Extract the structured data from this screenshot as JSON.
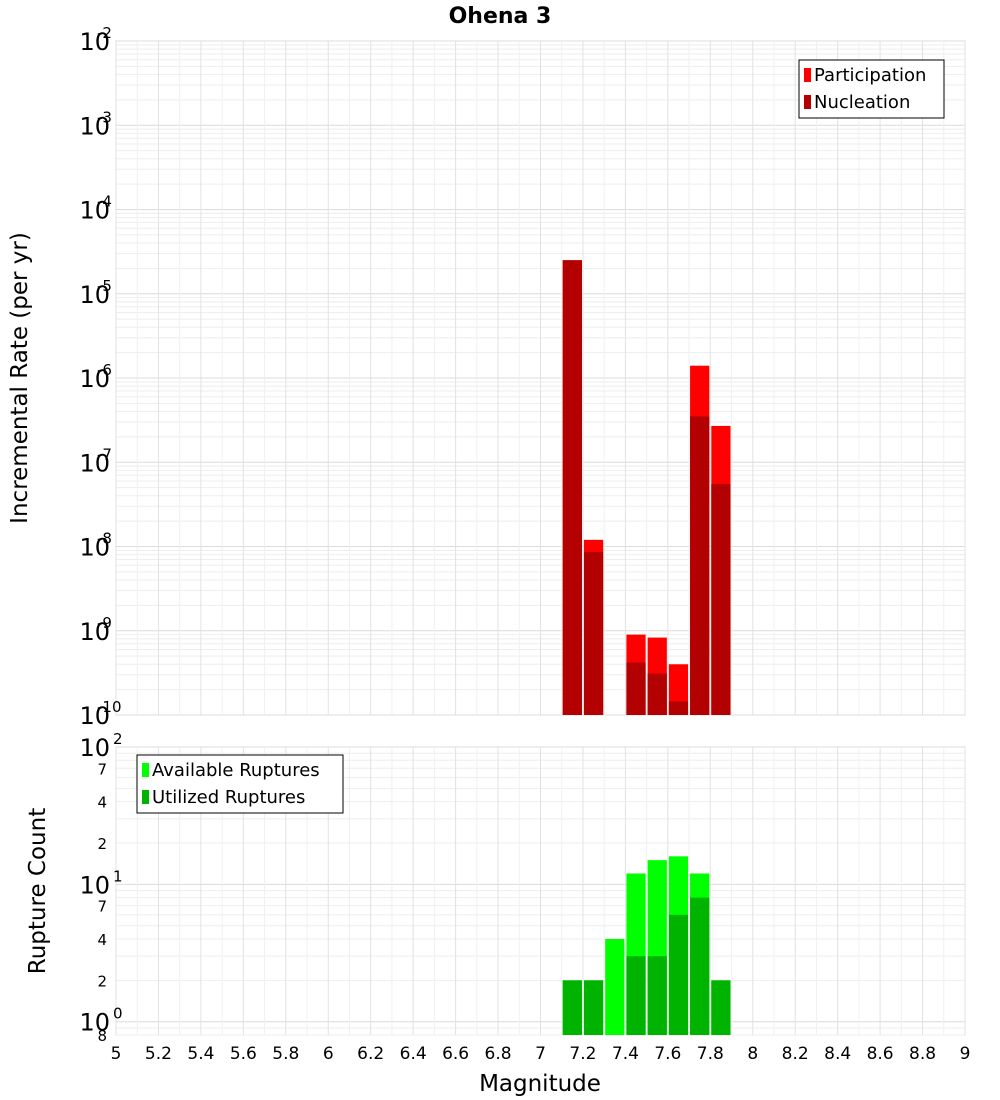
{
  "chart_data": {
    "title": "Ohena 3",
    "xlabel": "Magnitude",
    "xlim": [
      5,
      9
    ],
    "x_ticks": [
      "5",
      "5.2",
      "5.4",
      "5.6",
      "5.8",
      "6",
      "6.2",
      "6.4",
      "6.6",
      "6.8",
      "7",
      "7.2",
      "7.4",
      "7.6",
      "7.8",
      "8",
      "8.2",
      "8.4",
      "8.6",
      "8.8",
      "9"
    ],
    "bar_width": 0.1,
    "panels": [
      {
        "type": "bar",
        "ylabel": "Incremental Rate (per yr)",
        "yscale": "log",
        "ylim": [
          1e-10,
          0.01
        ],
        "major_ticks": [
          {
            "base": "10",
            "exp": "-10",
            "value": 1e-10
          },
          {
            "base": "10",
            "exp": "-9",
            "value": 1e-09
          },
          {
            "base": "10",
            "exp": "-8",
            "value": 1e-08
          },
          {
            "base": "10",
            "exp": "-7",
            "value": 1e-07
          },
          {
            "base": "10",
            "exp": "-6",
            "value": 1e-06
          },
          {
            "base": "10",
            "exp": "-5",
            "value": 1e-05
          },
          {
            "base": "10",
            "exp": "-4",
            "value": 0.0001
          },
          {
            "base": "10",
            "exp": "-3",
            "value": 0.001
          },
          {
            "base": "10",
            "exp": "-2",
            "value": 0.01
          }
        ],
        "minor_ticks": [],
        "legend_position": "top-right",
        "series": [
          {
            "name": "Participation",
            "color": "#ff0000",
            "points": [
              {
                "x": 7.15,
                "y": 2.5e-05
              },
              {
                "x": 7.25,
                "y": 1.2e-08
              },
              {
                "x": 7.45,
                "y": 9e-10
              },
              {
                "x": 7.55,
                "y": 8.3e-10
              },
              {
                "x": 7.65,
                "y": 4e-10
              },
              {
                "x": 7.75,
                "y": 1.4e-06
              },
              {
                "x": 7.85,
                "y": 2.7e-07
              }
            ]
          },
          {
            "name": "Nucleation",
            "color": "#b30000",
            "points": [
              {
                "x": 7.15,
                "y": 2.5e-05
              },
              {
                "x": 7.25,
                "y": 8.6e-09
              },
              {
                "x": 7.45,
                "y": 4.2e-10
              },
              {
                "x": 7.55,
                "y": 3.1e-10
              },
              {
                "x": 7.65,
                "y": 1.45e-10
              },
              {
                "x": 7.75,
                "y": 3.5e-07
              },
              {
                "x": 7.85,
                "y": 5.5e-08
              }
            ]
          }
        ]
      },
      {
        "type": "bar",
        "ylabel": "Rupture Count",
        "yscale": "log",
        "ylim": [
          0.8,
          100
        ],
        "major_ticks": [
          {
            "base": "10",
            "exp": "0",
            "value": 1
          },
          {
            "base": "10",
            "exp": "1",
            "value": 10
          },
          {
            "base": "10",
            "exp": "2",
            "value": 100
          }
        ],
        "minor_ticks": [
          {
            "label": "8",
            "value": 0.8
          },
          {
            "label": "2",
            "value": 2
          },
          {
            "label": "4",
            "value": 4
          },
          {
            "label": "7",
            "value": 7
          },
          {
            "label": "2",
            "value": 20
          },
          {
            "label": "4",
            "value": 40
          },
          {
            "label": "7",
            "value": 70
          }
        ],
        "legend_position": "top-left",
        "series": [
          {
            "name": "Available Ruptures",
            "color": "#00ff00",
            "points": [
              {
                "x": 7.15,
                "y": 2
              },
              {
                "x": 7.25,
                "y": 2
              },
              {
                "x": 7.35,
                "y": 4
              },
              {
                "x": 7.45,
                "y": 12
              },
              {
                "x": 7.55,
                "y": 15
              },
              {
                "x": 7.65,
                "y": 16
              },
              {
                "x": 7.75,
                "y": 12
              },
              {
                "x": 7.85,
                "y": 2
              }
            ]
          },
          {
            "name": "Utilized Ruptures",
            "color": "#00b300",
            "points": [
              {
                "x": 7.15,
                "y": 2
              },
              {
                "x": 7.25,
                "y": 2
              },
              {
                "x": 7.45,
                "y": 3
              },
              {
                "x": 7.55,
                "y": 3
              },
              {
                "x": 7.65,
                "y": 6
              },
              {
                "x": 7.75,
                "y": 8
              },
              {
                "x": 7.85,
                "y": 2
              }
            ]
          }
        ]
      }
    ]
  }
}
